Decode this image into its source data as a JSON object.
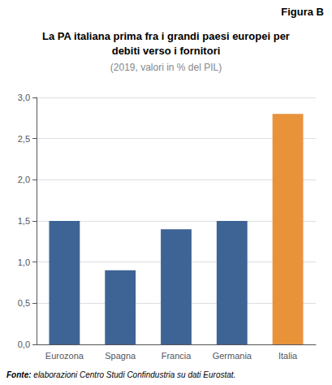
{
  "chart_data": {
    "type": "bar",
    "title": [
      "La PA italiana prima fra i grandi paesi europei per",
      "debiti verso i fornitori"
    ],
    "subtitle": "(2019, valori in % del PIL)",
    "annotations": [
      "Figura B",
      "Fonte: elaborazioni Centro Studi Confindustria su dati Eurostat."
    ],
    "categories": [
      "Eurozona",
      "Spagna",
      "Francia",
      "Germania",
      "Italia"
    ],
    "values": [
      1.5,
      0.9,
      1.4,
      1.5,
      2.8
    ],
    "colors": [
      "#3d6494",
      "#3d6494",
      "#3d6494",
      "#3d6494",
      "#e8923a"
    ],
    "ylim": [
      0,
      3.0
    ],
    "yticks": [
      {
        "value": 0.0,
        "label": "0,0"
      },
      {
        "value": 0.5,
        "label": "0,5"
      },
      {
        "value": 1.0,
        "label": "1,0"
      },
      {
        "value": 1.5,
        "label": "1,5"
      },
      {
        "value": 2.0,
        "label": "2,0"
      },
      {
        "value": 2.5,
        "label": "2,5"
      },
      {
        "value": 3.0,
        "label": "3,0"
      }
    ],
    "grid": true
  }
}
